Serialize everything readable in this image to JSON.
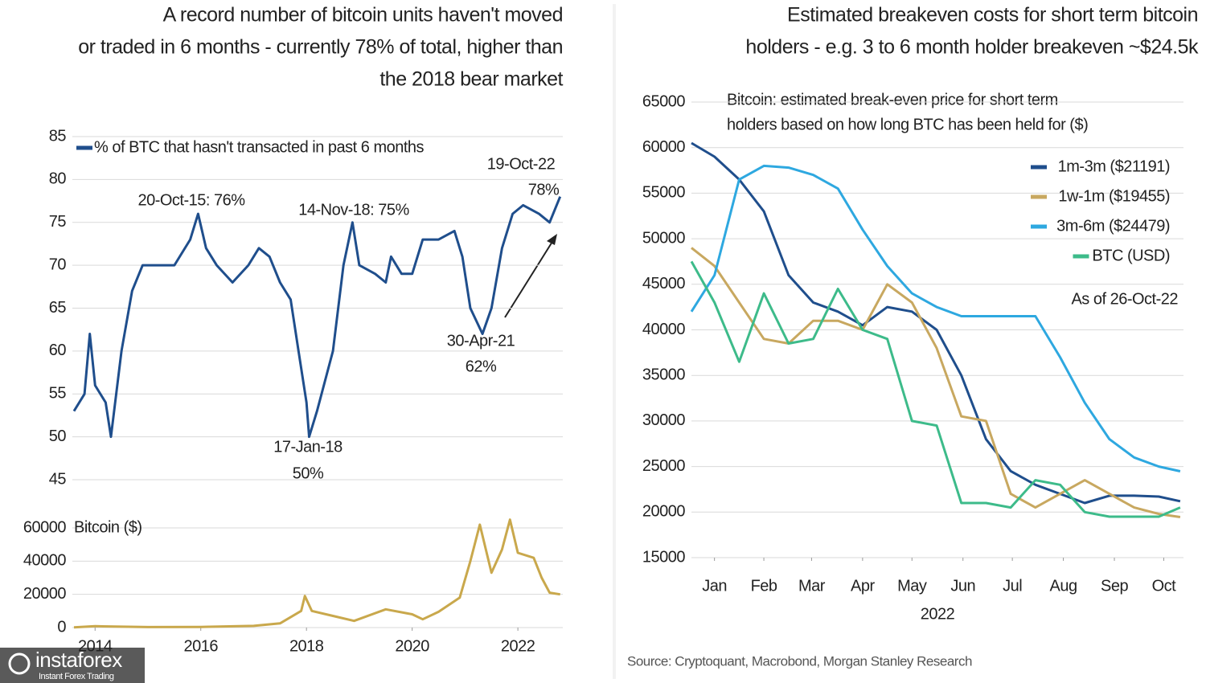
{
  "chart_data": [
    {
      "type": "line",
      "title": [
        "A record number of bitcoin units haven't moved",
        "or traded in 6 months - currently 78% of total, higher than",
        "the 2018 bear market"
      ],
      "x": [
        2013.6,
        2013.8,
        2013.9,
        2014.0,
        2014.2,
        2014.3,
        2014.5,
        2014.7,
        2014.9,
        2015.2,
        2015.5,
        2015.8,
        2015.95,
        2016.1,
        2016.3,
        2016.6,
        2016.9,
        2017.1,
        2017.3,
        2017.5,
        2017.7,
        2017.85,
        2018.0,
        2018.05,
        2018.2,
        2018.5,
        2018.7,
        2018.87,
        2019.0,
        2019.3,
        2019.5,
        2019.6,
        2019.8,
        2020.0,
        2020.2,
        2020.5,
        2020.8,
        2020.95,
        2021.1,
        2021.33,
        2021.5,
        2021.7,
        2021.9,
        2022.1,
        2022.4,
        2022.6,
        2022.8
      ],
      "series": [
        {
          "name": "% of BTC that hasn't transacted in past 6 months",
          "color": "#1f4e8c",
          "values": [
            53,
            55,
            62,
            56,
            54,
            50,
            60,
            67,
            70,
            70,
            70,
            73,
            76,
            72,
            70,
            68,
            70,
            72,
            71,
            68,
            66,
            60,
            54,
            50,
            53,
            60,
            70,
            75,
            70,
            69,
            68,
            71,
            69,
            69,
            73,
            73,
            74,
            71,
            65,
            62,
            65,
            72,
            76,
            77,
            76,
            75,
            78
          ]
        }
      ],
      "annotations": [
        {
          "text": "20-Oct-15: 76%"
        },
        {
          "text": "14-Nov-18: 75%"
        },
        {
          "text": "19-Oct-22"
        },
        {
          "text": "78%"
        },
        {
          "text": "17-Jan-18"
        },
        {
          "text": "50%"
        },
        {
          "text": "30-Apr-21"
        },
        {
          "text": "62%"
        }
      ],
      "xlim": [
        2013.57,
        2022.85
      ],
      "ylim": [
        45,
        85
      ],
      "yticks": [
        45,
        50,
        55,
        60,
        65,
        70,
        75,
        80,
        85
      ],
      "grid": true,
      "legend": "upper left"
    },
    {
      "type": "line",
      "x": [
        2013.6,
        2014.0,
        2015.0,
        2016.0,
        2017.0,
        2017.5,
        2017.9,
        2017.97,
        2018.1,
        2018.5,
        2018.9,
        2019.5,
        2020.0,
        2020.2,
        2020.5,
        2020.9,
        2021.1,
        2021.28,
        2021.5,
        2021.7,
        2021.85,
        2022.0,
        2022.3,
        2022.45,
        2022.6,
        2022.8
      ],
      "series": [
        {
          "name": "Bitcoin ($)",
          "color": "#c9a84c",
          "values": [
            100,
            800,
            300,
            400,
            1000,
            2500,
            10000,
            19000,
            10000,
            7000,
            4000,
            11000,
            8000,
            5000,
            9500,
            18000,
            40000,
            62000,
            33000,
            47000,
            65000,
            45000,
            42000,
            30000,
            21000,
            20000
          ]
        }
      ],
      "xlim": [
        2013.57,
        2022.85
      ],
      "xticks": [
        2014,
        2016,
        2018,
        2020,
        2022
      ],
      "ylim": [
        0,
        65000
      ],
      "yticks": [
        0,
        20000,
        40000,
        60000
      ],
      "grid": true,
      "legend": "upper left"
    },
    {
      "type": "line",
      "title": [
        "Estimated breakeven costs for short term bitcoin",
        "holders - e.g. 3 to 6 month holder breakeven ~$24.5k"
      ],
      "subtitle": [
        "Bitcoin: estimated break-even price for short term",
        "holders based on how long BTC has been held for ($)"
      ],
      "x": [
        1,
        15,
        30,
        45,
        60,
        75,
        90,
        105,
        120,
        135,
        150,
        165,
        180,
        195,
        210,
        225,
        240,
        255,
        270,
        285,
        298
      ],
      "series": [
        {
          "name": "1m-3m ($21191)",
          "color": "#1f4e8c",
          "values": [
            60500,
            59000,
            56500,
            53000,
            46000,
            43000,
            42000,
            40500,
            42500,
            42000,
            40000,
            35000,
            28000,
            24500,
            23000,
            22000,
            21000,
            21800,
            21800,
            21700,
            21191
          ]
        },
        {
          "name": "1w-1m ($19455)",
          "color": "#c8a860",
          "values": [
            49000,
            47000,
            43000,
            39000,
            38500,
            41000,
            41000,
            40000,
            45000,
            43000,
            38000,
            30500,
            30000,
            22000,
            20500,
            22000,
            23500,
            22000,
            20500,
            19800,
            19455
          ]
        },
        {
          "name": "3m-6m ($24479)",
          "color": "#2ea8e0",
          "values": [
            42000,
            46000,
            56500,
            58000,
            57800,
            57000,
            55500,
            51000,
            47000,
            44000,
            42500,
            41500,
            41500,
            41500,
            41500,
            37000,
            32000,
            28000,
            26000,
            25000,
            24479
          ]
        },
        {
          "name": "BTC (USD)",
          "color": "#3dbb8a",
          "values": [
            47500,
            43000,
            36500,
            44000,
            38500,
            39000,
            44500,
            40000,
            39000,
            30000,
            29500,
            21000,
            21000,
            20500,
            23500,
            23000,
            20000,
            19500,
            19500,
            19500,
            20500
          ]
        }
      ],
      "annotations": [
        {
          "text": "As of 26-Oct-22"
        }
      ],
      "xlabel": "2022",
      "xlim": [
        1,
        300
      ],
      "xticks": [
        {
          "value": 15,
          "label": "Jan"
        },
        {
          "value": 45,
          "label": "Feb"
        },
        {
          "value": 74,
          "label": "Mar"
        },
        {
          "value": 105,
          "label": "Apr"
        },
        {
          "value": 135,
          "label": "May"
        },
        {
          "value": 166,
          "label": "Jun"
        },
        {
          "value": 196,
          "label": "Jul"
        },
        {
          "value": 227,
          "label": "Aug"
        },
        {
          "value": 258,
          "label": "Sep"
        },
        {
          "value": 288,
          "label": "Oct"
        }
      ],
      "ylim": [
        15000,
        65000
      ],
      "yticks": [
        15000,
        20000,
        25000,
        30000,
        35000,
        40000,
        45000,
        50000,
        55000,
        60000,
        65000
      ],
      "grid": true,
      "legend": "upper right"
    }
  ],
  "source": "Source: Cryptoquant, Macrobond, Morgan Stanley Research",
  "watermark": {
    "name": "instaforex",
    "tagline": "Instant Forex Trading"
  }
}
